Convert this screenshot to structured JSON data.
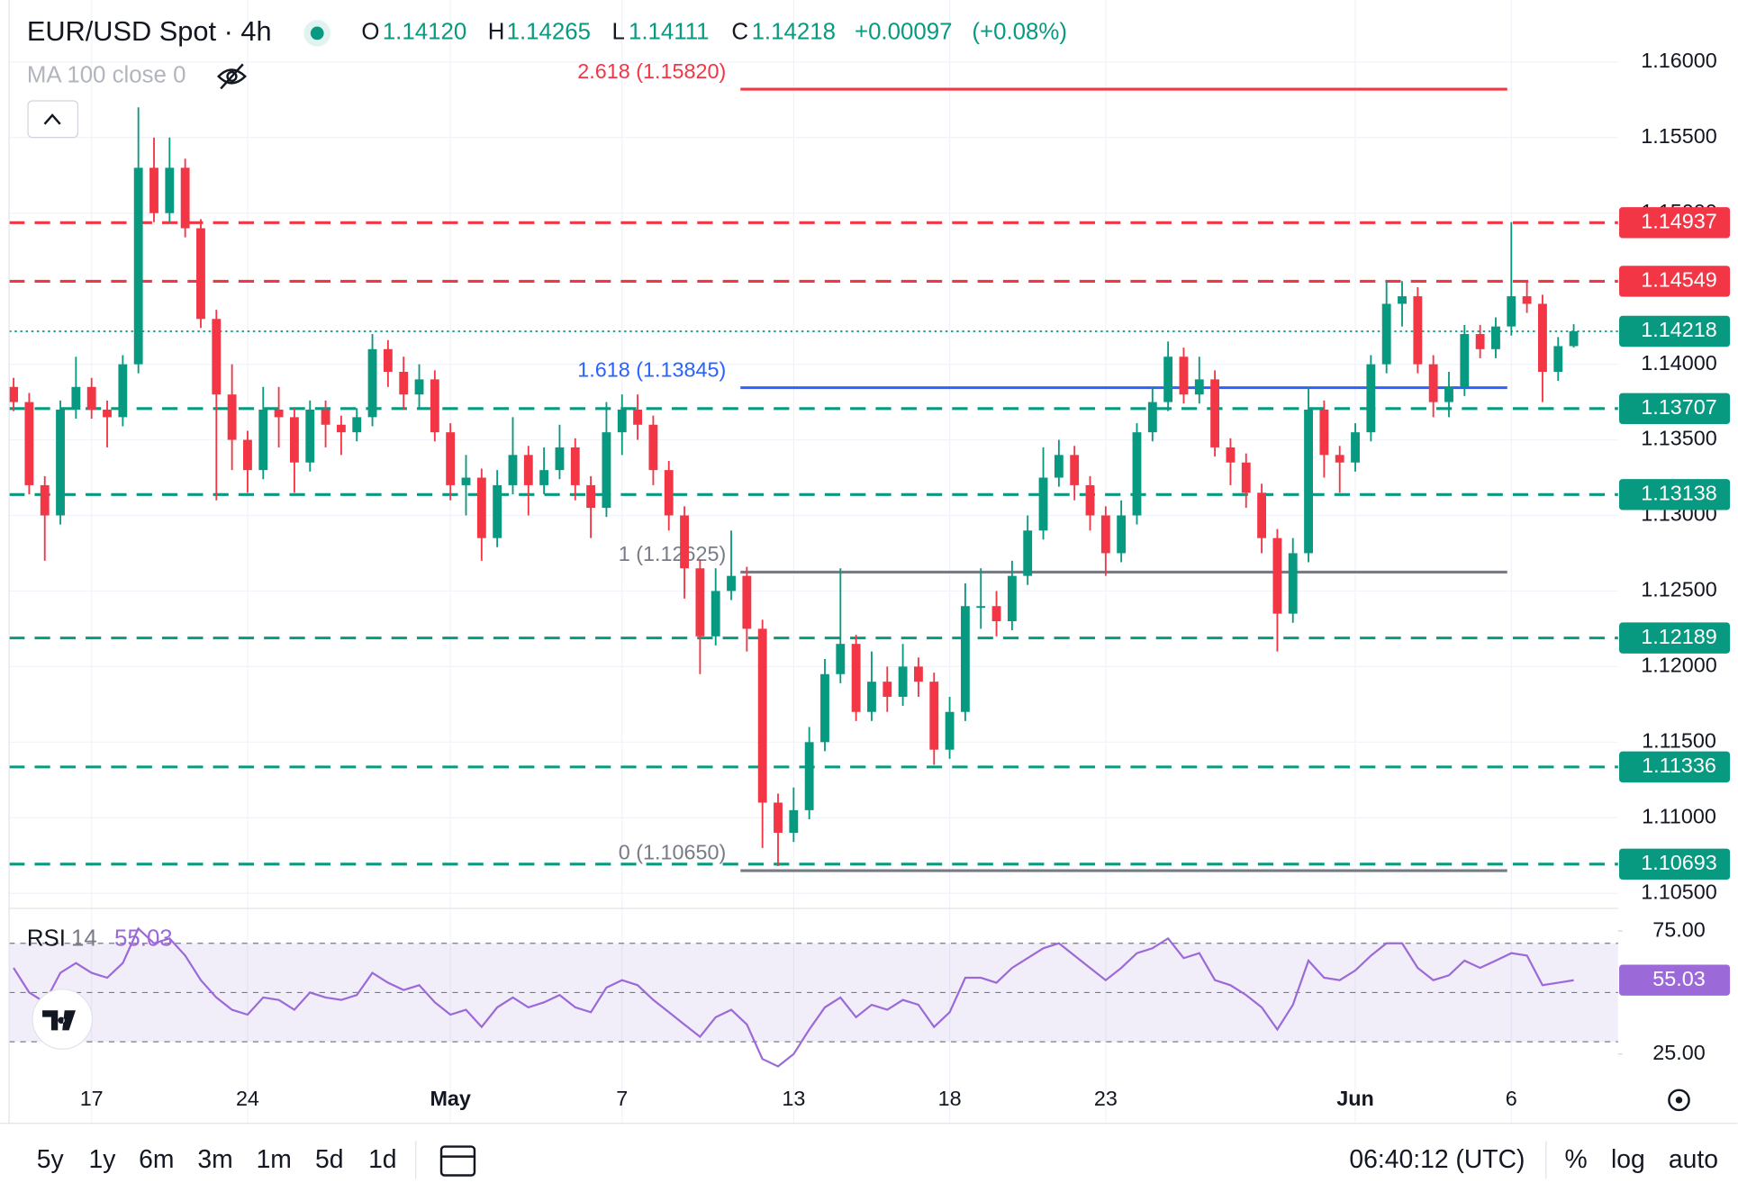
{
  "header": {
    "symbol": "EUR/USD Spot · 4h",
    "o_label": "O",
    "o": "1.14120",
    "h_label": "H",
    "h": "1.14265",
    "l_label": "L",
    "l": "1.14111",
    "c_label": "C",
    "c": "1.14218",
    "change": "+0.00097",
    "change_pct": "(+0.08%)",
    "indicator": "MA 100 close 0"
  },
  "chart_data": [
    {
      "type": "candlestick",
      "categories": [
        null,
        null,
        null,
        null,
        null,
        "17",
        null,
        null,
        null,
        null,
        null,
        null,
        null,
        null,
        null,
        "24",
        null,
        null,
        null,
        null,
        null,
        null,
        null,
        null,
        null,
        null,
        null,
        null,
        "May",
        null,
        null,
        null,
        null,
        null,
        null,
        null,
        null,
        null,
        null,
        "7",
        null,
        null,
        null,
        null,
        null,
        null,
        null,
        null,
        null,
        null,
        "13",
        null,
        null,
        null,
        null,
        null,
        null,
        null,
        null,
        null,
        "18",
        null,
        null,
        null,
        null,
        null,
        null,
        null,
        null,
        null,
        "23",
        null,
        null,
        null,
        null,
        null,
        null,
        null,
        null,
        null,
        null,
        null,
        null,
        null,
        null,
        null,
        "Jun",
        null,
        null,
        null,
        null,
        null,
        null,
        null,
        null,
        null,
        "6",
        null,
        null,
        null,
        null
      ],
      "open": [
        1.1385,
        1.1375,
        1.132,
        1.13,
        1.137,
        1.1385,
        1.137,
        1.1365,
        1.14,
        1.153,
        1.15,
        1.153,
        1.149,
        1.143,
        1.138,
        1.135,
        1.133,
        1.137,
        1.1365,
        1.1335,
        1.137,
        1.136,
        1.1355,
        1.1365,
        1.141,
        1.1395,
        1.138,
        1.139,
        1.1355,
        1.132,
        1.1325,
        1.1285,
        1.132,
        1.134,
        1.132,
        1.133,
        1.1345,
        1.132,
        1.1305,
        1.1355,
        1.137,
        1.136,
        1.133,
        1.13,
        1.1265,
        1.122,
        1.125,
        1.126,
        1.1225,
        1.111,
        1.109,
        1.1105,
        1.115,
        1.1195,
        1.1215,
        1.117,
        1.119,
        1.118,
        1.12,
        1.119,
        1.1145,
        1.117,
        1.124,
        1.124,
        1.123,
        1.126,
        1.129,
        1.1325,
        1.134,
        1.132,
        1.13,
        1.1275,
        1.13,
        1.1355,
        1.1375,
        1.1405,
        1.138,
        1.139,
        1.1345,
        1.1335,
        1.1315,
        1.1285,
        1.1235,
        1.1275,
        1.137,
        1.134,
        1.1335,
        1.1355,
        1.14,
        1.144,
        1.1445,
        1.14,
        1.1375,
        1.1385,
        1.142,
        1.141,
        1.1425,
        1.1445,
        1.144,
        1.1395,
        1.1412
      ],
      "high": [
        1.1391,
        1.1381,
        1.1326,
        1.1376,
        1.1405,
        1.1391,
        1.1376,
        1.1406,
        1.157,
        1.155,
        1.155,
        1.1536,
        1.1496,
        1.1436,
        1.14,
        1.1356,
        1.1385,
        1.1385,
        1.1371,
        1.1376,
        1.1376,
        1.1366,
        1.1371,
        1.142,
        1.1416,
        1.1405,
        1.14,
        1.1396,
        1.1361,
        1.134,
        1.1331,
        1.133,
        1.1365,
        1.1346,
        1.1345,
        1.136,
        1.1351,
        1.1326,
        1.1375,
        1.138,
        1.138,
        1.1366,
        1.1336,
        1.1306,
        1.1271,
        1.1265,
        1.129,
        1.1266,
        1.1231,
        1.1116,
        1.112,
        1.116,
        1.1205,
        1.1265,
        1.1221,
        1.121,
        1.12,
        1.1215,
        1.1206,
        1.1196,
        1.118,
        1.1255,
        1.1265,
        1.125,
        1.127,
        1.13,
        1.1345,
        1.135,
        1.1346,
        1.1326,
        1.1306,
        1.131,
        1.1361,
        1.1385,
        1.1415,
        1.1411,
        1.1405,
        1.1396,
        1.1351,
        1.1341,
        1.1321,
        1.1291,
        1.1285,
        1.1385,
        1.1376,
        1.1346,
        1.1361,
        1.1406,
        1.1455,
        1.1455,
        1.1451,
        1.1406,
        1.1395,
        1.1426,
        1.1426,
        1.1431,
        1.1494,
        1.1455,
        1.1446,
        1.1418,
        1.14265
      ],
      "low": [
        1.1369,
        1.1314,
        1.127,
        1.1294,
        1.1364,
        1.1364,
        1.1345,
        1.1359,
        1.1394,
        1.1494,
        1.1494,
        1.1484,
        1.1424,
        1.131,
        1.133,
        1.1315,
        1.1324,
        1.1345,
        1.1315,
        1.1329,
        1.1345,
        1.134,
        1.1349,
        1.1359,
        1.1385,
        1.137,
        1.137,
        1.1349,
        1.131,
        1.13,
        1.127,
        1.1279,
        1.1314,
        1.13,
        1.1314,
        1.1324,
        1.131,
        1.1285,
        1.1299,
        1.134,
        1.135,
        1.132,
        1.129,
        1.1245,
        1.1195,
        1.1214,
        1.1244,
        1.121,
        1.108,
        1.1068,
        1.1084,
        1.1099,
        1.1144,
        1.1189,
        1.1164,
        1.1164,
        1.117,
        1.1174,
        1.118,
        1.1135,
        1.1139,
        1.1164,
        1.1225,
        1.122,
        1.1224,
        1.1254,
        1.1284,
        1.1319,
        1.131,
        1.129,
        1.126,
        1.1269,
        1.1294,
        1.1349,
        1.1369,
        1.1374,
        1.1374,
        1.1339,
        1.132,
        1.1305,
        1.1275,
        1.121,
        1.1229,
        1.1269,
        1.1325,
        1.1315,
        1.1329,
        1.1349,
        1.1394,
        1.1425,
        1.1394,
        1.1365,
        1.1365,
        1.1379,
        1.1404,
        1.1404,
        1.1419,
        1.1434,
        1.1375,
        1.1389,
        1.14111
      ],
      "close": [
        1.1375,
        1.132,
        1.13,
        1.137,
        1.1385,
        1.137,
        1.1365,
        1.14,
        1.153,
        1.15,
        1.153,
        1.149,
        1.143,
        1.138,
        1.135,
        1.133,
        1.137,
        1.1365,
        1.1335,
        1.137,
        1.136,
        1.1355,
        1.1365,
        1.141,
        1.1395,
        1.138,
        1.139,
        1.1355,
        1.132,
        1.1325,
        1.1285,
        1.132,
        1.134,
        1.132,
        1.133,
        1.1345,
        1.132,
        1.1305,
        1.1355,
        1.137,
        1.136,
        1.133,
        1.13,
        1.1265,
        1.122,
        1.125,
        1.126,
        1.1225,
        1.111,
        1.109,
        1.1105,
        1.115,
        1.1195,
        1.1215,
        1.117,
        1.119,
        1.118,
        1.12,
        1.119,
        1.1145,
        1.117,
        1.124,
        1.124,
        1.123,
        1.126,
        1.129,
        1.1325,
        1.134,
        1.132,
        1.13,
        1.1275,
        1.13,
        1.1355,
        1.1375,
        1.1405,
        1.138,
        1.139,
        1.1345,
        1.1335,
        1.1315,
        1.1285,
        1.1235,
        1.1275,
        1.137,
        1.134,
        1.1335,
        1.1355,
        1.14,
        1.144,
        1.1445,
        1.14,
        1.1375,
        1.1385,
        1.142,
        1.141,
        1.1425,
        1.1445,
        1.144,
        1.1395,
        1.1412,
        1.14218
      ],
      "up_color": "#089981",
      "down_color": "#f23645",
      "ylim": [
        1.104,
        1.1641
      ],
      "yticks": [
        {
          "value": 1.16,
          "label": "1.16000"
        },
        {
          "value": 1.155,
          "label": "1.15500"
        },
        {
          "value": 1.15,
          "label": "1.15000"
        },
        {
          "value": 1.14,
          "label": "1.14000"
        },
        {
          "value": 1.135,
          "label": "1.13500"
        },
        {
          "value": 1.13,
          "label": "1.13000"
        },
        {
          "value": 1.125,
          "label": "1.12500"
        },
        {
          "value": 1.12,
          "label": "1.12000"
        },
        {
          "value": 1.115,
          "label": "1.11500"
        },
        {
          "value": 1.11,
          "label": "1.11000"
        },
        {
          "value": 1.105,
          "label": "1.10500"
        }
      ],
      "grid": true,
      "levels": [
        {
          "value": 1.14937,
          "color": "#f23645"
        },
        {
          "value": 1.14549,
          "color": "#f23645"
        },
        {
          "value": 1.13707,
          "color": "#089981"
        },
        {
          "value": 1.13138,
          "color": "#089981"
        },
        {
          "value": 1.12189,
          "color": "#089981"
        },
        {
          "value": 1.11336,
          "color": "#089981"
        },
        {
          "value": 1.10693,
          "color": "#089981"
        }
      ],
      "last_price": {
        "value": 1.14218,
        "color": "#089981"
      },
      "fib": [
        {
          "label": "2.618 (1.15820)",
          "value": 1.1582,
          "color": "#f23645"
        },
        {
          "label": "1.618 (1.13845)",
          "value": 1.13845,
          "color": "#2962ff"
        },
        {
          "label": "1 (1.12625)",
          "value": 1.12625,
          "color": "#787b86"
        },
        {
          "label": "0 (1.10650)",
          "value": 1.1065,
          "color": "#787b86"
        }
      ]
    },
    {
      "type": "line",
      "name": "RSI",
      "period": "14",
      "color": "#9c6ad8",
      "values": [
        60,
        50,
        46,
        58,
        62,
        58,
        56,
        62,
        76,
        70,
        72,
        65,
        55,
        48,
        43,
        41,
        48,
        47,
        43,
        50,
        48,
        47,
        49,
        58,
        54,
        51,
        53,
        46,
        41,
        43,
        36,
        44,
        48,
        44,
        46,
        49,
        44,
        42,
        52,
        55,
        53,
        47,
        42,
        37,
        32,
        40,
        43,
        37,
        23,
        20,
        25,
        35,
        44,
        48,
        40,
        45,
        43,
        47,
        45,
        36,
        42,
        56,
        56,
        54,
        60,
        64,
        68,
        70,
        65,
        60,
        55,
        60,
        66,
        68,
        72,
        64,
        66,
        55,
        53,
        49,
        44,
        35,
        45,
        63,
        56,
        55,
        59,
        65,
        70,
        70,
        60,
        55,
        57,
        63,
        60,
        63,
        66,
        65,
        53,
        54,
        55.03
      ],
      "ylim": [
        14.4,
        83.3
      ],
      "yticks": [
        {
          "value": 75,
          "label": "75.00"
        },
        {
          "value": 25,
          "label": "25.00"
        }
      ],
      "levels": [
        70,
        50,
        30
      ]
    }
  ],
  "toolbar": {
    "ranges": [
      "5y",
      "1y",
      "6m",
      "3m",
      "1m",
      "5d",
      "1d"
    ],
    "clock": "06:40:12 (UTC)",
    "percent": "%",
    "log": "log",
    "auto": "auto"
  }
}
